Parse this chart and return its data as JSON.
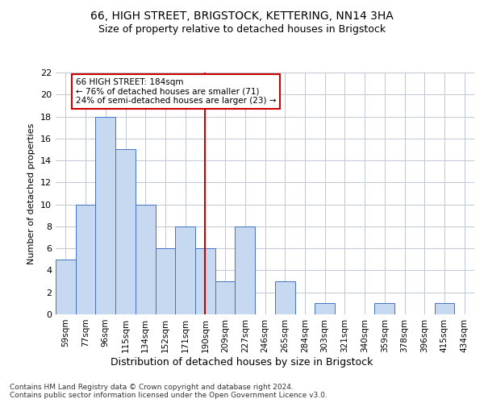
{
  "title1": "66, HIGH STREET, BRIGSTOCK, KETTERING, NN14 3HA",
  "title2": "Size of property relative to detached houses in Brigstock",
  "xlabel": "Distribution of detached houses by size in Brigstock",
  "ylabel": "Number of detached properties",
  "bins": [
    "59sqm",
    "77sqm",
    "96sqm",
    "115sqm",
    "134sqm",
    "152sqm",
    "171sqm",
    "190sqm",
    "209sqm",
    "227sqm",
    "246sqm",
    "265sqm",
    "284sqm",
    "303sqm",
    "321sqm",
    "340sqm",
    "359sqm",
    "378sqm",
    "396sqm",
    "415sqm",
    "434sqm"
  ],
  "counts": [
    5,
    10,
    18,
    15,
    10,
    6,
    8,
    6,
    3,
    8,
    0,
    3,
    0,
    1,
    0,
    0,
    1,
    0,
    0,
    1,
    0
  ],
  "bar_color": "#c6d9f0",
  "bar_edge_color": "#4472c4",
  "vline_x": 7,
  "vline_color": "#cc0000",
  "annotation_text": "66 HIGH STREET: 184sqm\n← 76% of detached houses are smaller (71)\n24% of semi-detached houses are larger (23) →",
  "annotation_box_color": "#cc0000",
  "ylim": [
    0,
    22
  ],
  "yticks": [
    0,
    2,
    4,
    6,
    8,
    10,
    12,
    14,
    16,
    18,
    20,
    22
  ],
  "footer": "Contains HM Land Registry data © Crown copyright and database right 2024.\nContains public sector information licensed under the Open Government Licence v3.0.",
  "bg_color": "#ffffff",
  "grid_color": "#c0c8d8"
}
